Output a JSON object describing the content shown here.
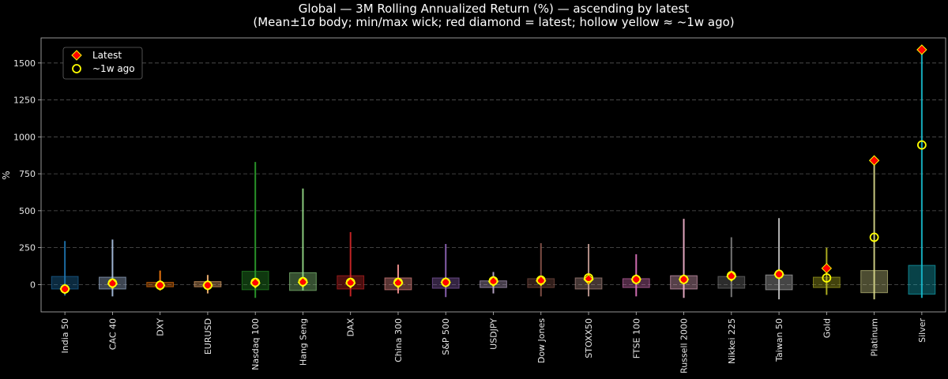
{
  "chart_data": {
    "type": "box-range",
    "title": "Global — 3M Rolling Annualized Return (%) — ascending by latest",
    "subtitle": "(Mean±1σ body; min/max wick; red diamond = latest; hollow yellow ≈ ~1w ago)",
    "xlabel": "",
    "ylabel": "%",
    "ylim": [
      -185,
      1670
    ],
    "yticks": [
      0,
      250,
      500,
      750,
      1000,
      1250,
      1500
    ],
    "ytick_labels": [
      "0",
      "250",
      "500",
      "750",
      "1000",
      "1250",
      "1500"
    ],
    "grid": true,
    "legend": {
      "position": "top-left",
      "entries": [
        {
          "label": "Latest",
          "marker": "red-diamond"
        },
        {
          "label": "~1w ago",
          "marker": "hollow-yellow-circle"
        }
      ]
    },
    "categories": [
      "India 50",
      "CAC 40",
      "DXY",
      "EURUSD",
      "Nasdaq 100",
      "Hang Seng",
      "DAX",
      "China 300",
      "S&P 500",
      "USDJPY",
      "Dow Jones",
      "STOXX50",
      "FTSE 100",
      "Russell 2000",
      "Nikkei 225",
      "Taiwan 50",
      "Gold",
      "Platinum",
      "Silver"
    ],
    "series": [
      {
        "name": "Mean-1σ",
        "values": [
          -30,
          -30,
          -15,
          -15,
          -35,
          -40,
          -30,
          -35,
          -25,
          -20,
          -20,
          -30,
          -20,
          -30,
          -25,
          -35,
          -20,
          -55,
          -65
        ]
      },
      {
        "name": "Mean+1σ",
        "values": [
          55,
          50,
          15,
          20,
          90,
          80,
          60,
          45,
          45,
          25,
          40,
          45,
          40,
          60,
          55,
          65,
          50,
          95,
          130
        ]
      },
      {
        "name": "Min",
        "values": [
          -75,
          -80,
          -40,
          -60,
          -90,
          -40,
          -80,
          -60,
          -85,
          -60,
          -80,
          -80,
          -80,
          -90,
          -85,
          -100,
          -70,
          -100,
          -90
        ]
      },
      {
        "name": "Max",
        "values": [
          295,
          305,
          95,
          65,
          830,
          650,
          355,
          135,
          275,
          85,
          280,
          275,
          205,
          445,
          320,
          450,
          250,
          840,
          1590
        ]
      },
      {
        "name": "Latest",
        "values": [
          -30,
          5,
          -5,
          -5,
          10,
          15,
          10,
          10,
          15,
          20,
          25,
          35,
          35,
          35,
          55,
          70,
          110,
          840,
          1590
        ]
      },
      {
        "name": "~1w ago",
        "values": [
          -30,
          10,
          -5,
          -5,
          15,
          20,
          15,
          15,
          15,
          25,
          30,
          45,
          35,
          35,
          60,
          70,
          45,
          320,
          945
        ]
      }
    ],
    "colors": [
      "#1f77b4",
      "#aec7e8",
      "#ff7f0e",
      "#ffbb78",
      "#2ca02c",
      "#98df8a",
      "#d62728",
      "#ff9896",
      "#9467bd",
      "#c5b0d5",
      "#8c564b",
      "#c49c94",
      "#e377c2",
      "#f7b6d2",
      "#7f7f7f",
      "#c7c7c7",
      "#bcbd22",
      "#dbdb8d",
      "#17becf"
    ],
    "latest_color": "#ff0000",
    "week_ago_color": "#ffff00"
  }
}
